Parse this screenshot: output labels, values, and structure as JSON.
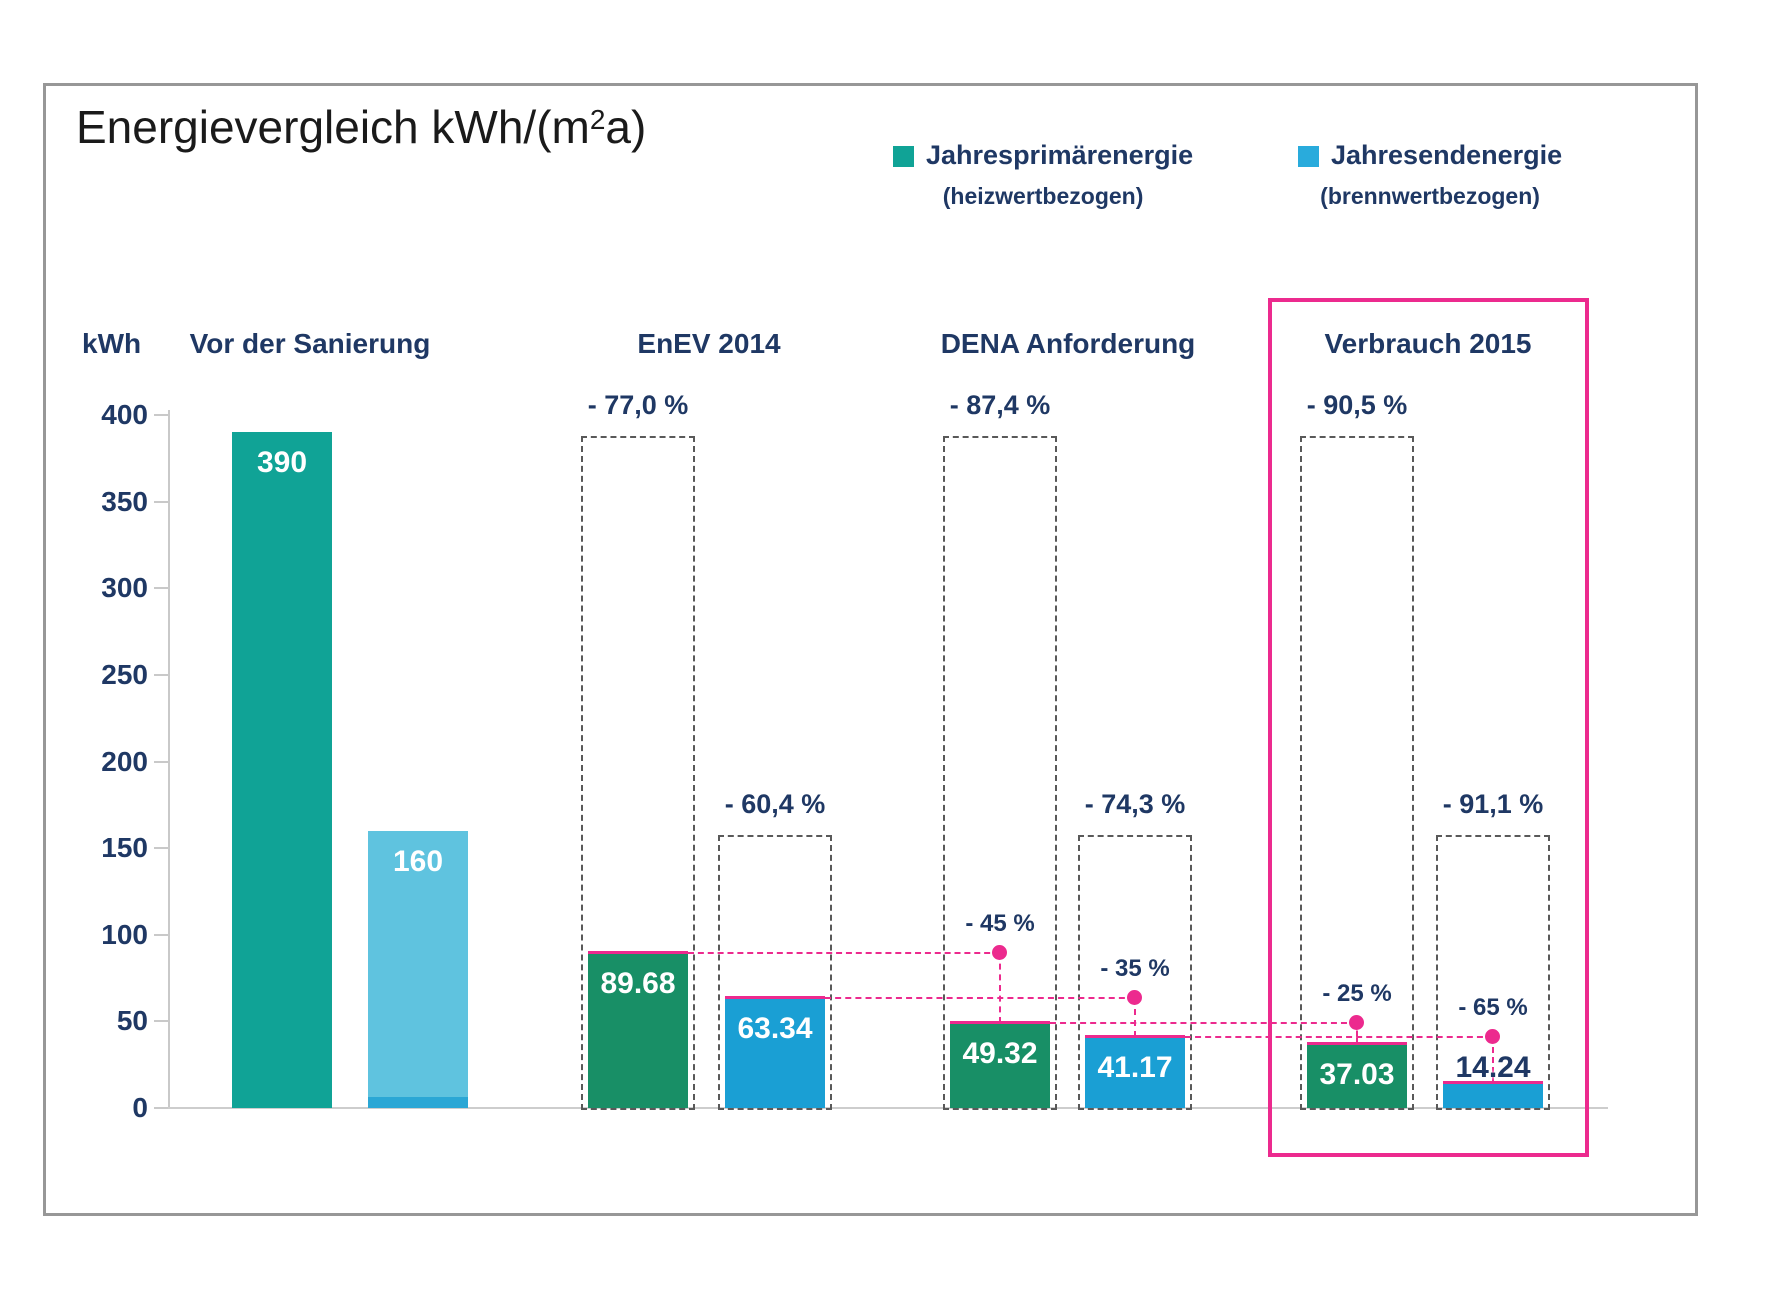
{
  "title": {
    "prefix": "Energievergleich kWh/(m",
    "sup": "2",
    "suffix": "a)"
  },
  "legend": [
    {
      "label": "Jahresprimärenergie",
      "sublabel": "(heizwertbezogen)",
      "color": "#10A396"
    },
    {
      "label": "Jahresendenergie",
      "sublabel": "(brennwertbezogen)",
      "color": "#29ABDC"
    }
  ],
  "axis": {
    "unit_label": "kWh",
    "ticks": [
      400,
      350,
      300,
      250,
      200,
      150,
      100,
      50,
      0
    ],
    "ylim": [
      0,
      400
    ]
  },
  "chart_data": {
    "type": "bar",
    "title": "Energievergleich kWh/(m2a)",
    "unit": "kWh/(m2a)",
    "ylim": [
      0,
      400
    ],
    "reference_values": {
      "primary": 390,
      "end": 160
    },
    "series_names": [
      "Jahresprimärenergie (heizwertbezogen)",
      "Jahresendenergie (brennwertbezogen)"
    ],
    "groups": [
      {
        "label": "Vor der Sanierung",
        "highlighted": false,
        "bars": [
          {
            "series": "Jahresprimärenergie",
            "value": 390,
            "label": "390"
          },
          {
            "series": "Jahresendenergie",
            "value": 160,
            "label": "160"
          }
        ]
      },
      {
        "label": "EnEV 2014",
        "highlighted": false,
        "bars": [
          {
            "series": "Jahresprimärenergie",
            "value": 89.68,
            "label": "89.68",
            "vs_baseline": "- 77,0 %"
          },
          {
            "series": "Jahresendenergie",
            "value": 63.34,
            "label": "63.34",
            "vs_baseline": "- 60,4 %"
          }
        ]
      },
      {
        "label": "DENA Anforderung",
        "highlighted": false,
        "bars": [
          {
            "series": "Jahresprimärenergie",
            "value": 49.32,
            "label": "49.32",
            "vs_baseline": "- 87,4 %",
            "vs_prev": "- 45 %"
          },
          {
            "series": "Jahresendenergie",
            "value": 41.17,
            "label": "41.17",
            "vs_baseline": "- 74,3 %",
            "vs_prev": "- 35 %"
          }
        ]
      },
      {
        "label": "Verbrauch 2015",
        "highlighted": true,
        "bars": [
          {
            "series": "Jahresprimärenergie",
            "value": 37.03,
            "label": "37.03",
            "vs_baseline": "- 90,5 %",
            "vs_prev": "- 25 %"
          },
          {
            "series": "Jahresendenergie",
            "value": 14.24,
            "label": "14.24",
            "vs_baseline": "- 91,1 %",
            "vs_prev": "- 65 %"
          }
        ]
      }
    ]
  },
  "colors": {
    "primary_series": "#10A396",
    "primary_series_dark": "#188F66",
    "end_series": "#29ABDC",
    "end_series_dark": "#1A9FD4",
    "end_series_light": "#5FC3DF",
    "end_series_strip": "#2BA7D5",
    "highlight_pink": "#EC2A8E",
    "text_navy": "#1F3864",
    "dashed_gray": "#595959",
    "axis_gray": "#C9C9C9"
  }
}
